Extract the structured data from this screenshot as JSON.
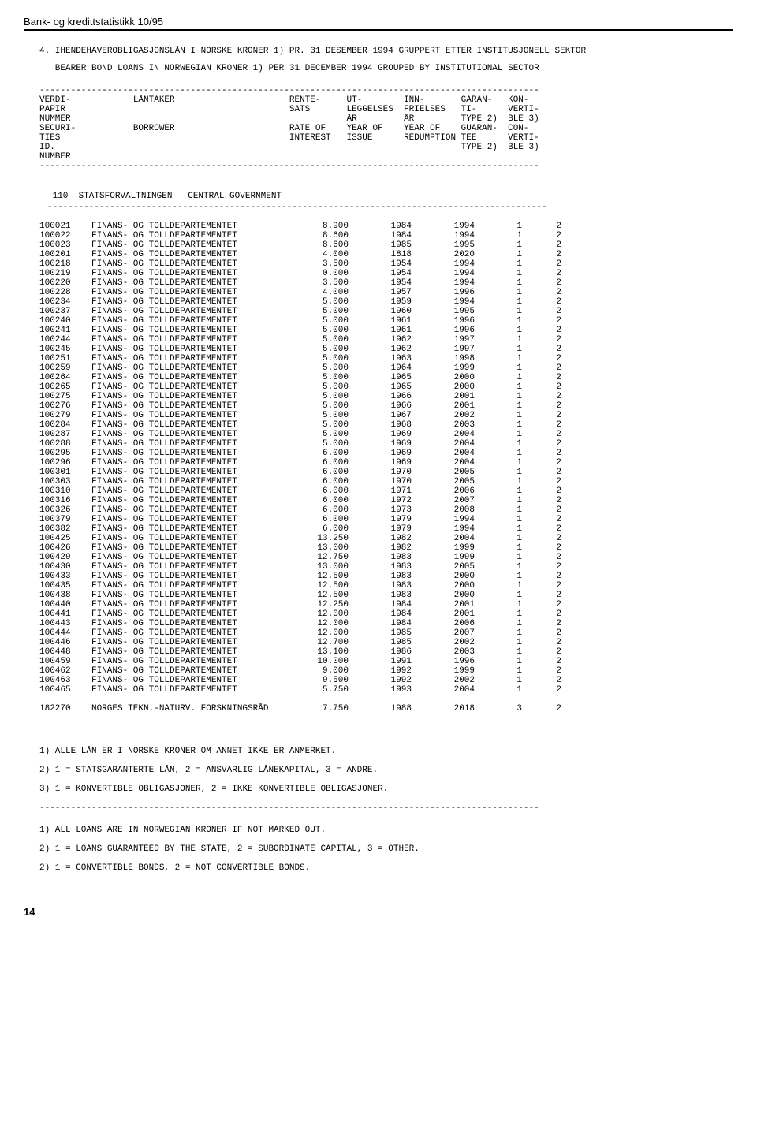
{
  "header": "Bank- og kredittstatistikk 10/95",
  "title_lines": [
    "4. IHENDEHAVEROBLIGASJONSLÅN I NORSKE KRONER 1) PR. 31 DESEMBER 1994 GRUPPERT ETTER INSTITUSJONELL SEKTOR",
    "   BEARER BOND LOANS IN NORWEGIAN KRONER 1) PER 31 DECEMBER 1994 GROUPED BY INSTITUTIONAL SECTOR"
  ],
  "col_header_lines": [
    "VERDI-            LÅNTAKER                      RENTE-     UT-        INN-       GARAN-   KON-",
    "PAPIR                                           SATS       LEGGELSES  FRIELSES   TI-      VERTI-",
    "NUMMER                                                     ÅR         ÅR         TYPE 2)  BLE 3)",
    "SECURI-           BORROWER                      RATE OF    YEAR OF    YEAR OF    GUARAN-  CON-",
    "TIES                                            INTEREST   ISSUE      REDUMPTION TEE      VERTI-",
    "ID.                                                                              TYPE 2)  BLE 3)",
    "NUMBER"
  ],
  "subheader": " 110  STATSFORVALTNINGEN   CENTRAL GOVERNMENT",
  "rows": [
    [
      "100021",
      "FINANS- OG TOLLDEPARTEMENTET",
      "8.900",
      "1984",
      "1994",
      "1",
      "2"
    ],
    [
      "100022",
      "FINANS- OG TOLLDEPARTEMENTET",
      "8.600",
      "1984",
      "1994",
      "1",
      "2"
    ],
    [
      "100023",
      "FINANS- OG TOLLDEPARTEMENTET",
      "8.600",
      "1985",
      "1995",
      "1",
      "2"
    ],
    [
      "100201",
      "FINANS- OG TOLLDEPARTEMENTET",
      "4.000",
      "1818",
      "2020",
      "1",
      "2"
    ],
    [
      "100218",
      "FINANS- OG TOLLDEPARTEMENTET",
      "3.500",
      "1954",
      "1994",
      "1",
      "2"
    ],
    [
      "100219",
      "FINANS- OG TOLLDEPARTEMENTET",
      "0.000",
      "1954",
      "1994",
      "1",
      "2"
    ],
    [
      "100220",
      "FINANS- OG TOLLDEPARTEMENTET",
      "3.500",
      "1954",
      "1994",
      "1",
      "2"
    ],
    [
      "100228",
      "FINANS- OG TOLLDEPARTEMENTET",
      "4.000",
      "1957",
      "1996",
      "1",
      "2"
    ],
    [
      "100234",
      "FINANS- OG TOLLDEPARTEMENTET",
      "5.000",
      "1959",
      "1994",
      "1",
      "2"
    ],
    [
      "100237",
      "FINANS- OG TOLLDEPARTEMENTET",
      "5.000",
      "1960",
      "1995",
      "1",
      "2"
    ],
    [
      "100240",
      "FINANS- OG TOLLDEPARTEMENTET",
      "5.000",
      "1961",
      "1996",
      "1",
      "2"
    ],
    [
      "100241",
      "FINANS- OG TOLLDEPARTEMENTET",
      "5.000",
      "1961",
      "1996",
      "1",
      "2"
    ],
    [
      "100244",
      "FINANS- OG TOLLDEPARTEMENTET",
      "5.000",
      "1962",
      "1997",
      "1",
      "2"
    ],
    [
      "100245",
      "FINANS- OG TOLLDEPARTEMENTET",
      "5.000",
      "1962",
      "1997",
      "1",
      "2"
    ],
    [
      "100251",
      "FINANS- OG TOLLDEPARTEMENTET",
      "5.000",
      "1963",
      "1998",
      "1",
      "2"
    ],
    [
      "100259",
      "FINANS- OG TOLLDEPARTEMENTET",
      "5.000",
      "1964",
      "1999",
      "1",
      "2"
    ],
    [
      "100264",
      "FINANS- OG TOLLDEPARTEMENTET",
      "5.000",
      "1965",
      "2000",
      "1",
      "2"
    ],
    [
      "100265",
      "FINANS- OG TOLLDEPARTEMENTET",
      "5.000",
      "1965",
      "2000",
      "1",
      "2"
    ],
    [
      "100275",
      "FINANS- OG TOLLDEPARTEMENTET",
      "5.000",
      "1966",
      "2001",
      "1",
      "2"
    ],
    [
      "100276",
      "FINANS- OG TOLLDEPARTEMENTET",
      "5.000",
      "1966",
      "2001",
      "1",
      "2"
    ],
    [
      "100279",
      "FINANS- OG TOLLDEPARTEMENTET",
      "5.000",
      "1967",
      "2002",
      "1",
      "2"
    ],
    [
      "100284",
      "FINANS- OG TOLLDEPARTEMENTET",
      "5.000",
      "1968",
      "2003",
      "1",
      "2"
    ],
    [
      "100287",
      "FINANS- OG TOLLDEPARTEMENTET",
      "5.000",
      "1969",
      "2004",
      "1",
      "2"
    ],
    [
      "100288",
      "FINANS- OG TOLLDEPARTEMENTET",
      "5.000",
      "1969",
      "2004",
      "1",
      "2"
    ],
    [
      "100295",
      "FINANS- OG TOLLDEPARTEMENTET",
      "6.000",
      "1969",
      "2004",
      "1",
      "2"
    ],
    [
      "100296",
      "FINANS- OG TOLLDEPARTEMENTET",
      "6.000",
      "1969",
      "2004",
      "1",
      "2"
    ],
    [
      "100301",
      "FINANS- OG TOLLDEPARTEMENTET",
      "6.000",
      "1970",
      "2005",
      "1",
      "2"
    ],
    [
      "100303",
      "FINANS- OG TOLLDEPARTEMENTET",
      "6.000",
      "1970",
      "2005",
      "1",
      "2"
    ],
    [
      "100310",
      "FINANS- OG TOLLDEPARTEMENTET",
      "6.000",
      "1971",
      "2006",
      "1",
      "2"
    ],
    [
      "100316",
      "FINANS- OG TOLLDEPARTEMENTET",
      "6.000",
      "1972",
      "2007",
      "1",
      "2"
    ],
    [
      "100326",
      "FINANS- OG TOLLDEPARTEMENTET",
      "6.000",
      "1973",
      "2008",
      "1",
      "2"
    ],
    [
      "100379",
      "FINANS- OG TOLLDEPARTEMENTET",
      "6.000",
      "1979",
      "1994",
      "1",
      "2"
    ],
    [
      "100382",
      "FINANS- OG TOLLDEPARTEMENTET",
      "6.000",
      "1979",
      "1994",
      "1",
      "2"
    ],
    [
      "100425",
      "FINANS- OG TOLLDEPARTEMENTET",
      "13.250",
      "1982",
      "2004",
      "1",
      "2"
    ],
    [
      "100426",
      "FINANS- OG TOLLDEPARTEMENTET",
      "13.000",
      "1982",
      "1999",
      "1",
      "2"
    ],
    [
      "100429",
      "FINANS- OG TOLLDEPARTEMENTET",
      "12.750",
      "1983",
      "1999",
      "1",
      "2"
    ],
    [
      "100430",
      "FINANS- OG TOLLDEPARTEMENTET",
      "13.000",
      "1983",
      "2005",
      "1",
      "2"
    ],
    [
      "100433",
      "FINANS- OG TOLLDEPARTEMENTET",
      "12.500",
      "1983",
      "2000",
      "1",
      "2"
    ],
    [
      "100435",
      "FINANS- OG TOLLDEPARTEMENTET",
      "12.500",
      "1983",
      "2000",
      "1",
      "2"
    ],
    [
      "100438",
      "FINANS- OG TOLLDEPARTEMENTET",
      "12.500",
      "1983",
      "2000",
      "1",
      "2"
    ],
    [
      "100440",
      "FINANS- OG TOLLDEPARTEMENTET",
      "12.250",
      "1984",
      "2001",
      "1",
      "2"
    ],
    [
      "100441",
      "FINANS- OG TOLLDEPARTEMENTET",
      "12.000",
      "1984",
      "2001",
      "1",
      "2"
    ],
    [
      "100443",
      "FINANS- OG TOLLDEPARTEMENTET",
      "12.000",
      "1984",
      "2006",
      "1",
      "2"
    ],
    [
      "100444",
      "FINANS- OG TOLLDEPARTEMENTET",
      "12.000",
      "1985",
      "2007",
      "1",
      "2"
    ],
    [
      "100446",
      "FINANS- OG TOLLDEPARTEMENTET",
      "12.700",
      "1985",
      "2002",
      "1",
      "2"
    ],
    [
      "100448",
      "FINANS- OG TOLLDEPARTEMENTET",
      "13.100",
      "1986",
      "2003",
      "1",
      "2"
    ],
    [
      "100459",
      "FINANS- OG TOLLDEPARTEMENTET",
      "10.000",
      "1991",
      "1996",
      "1",
      "2"
    ],
    [
      "100462",
      "FINANS- OG TOLLDEPARTEMENTET",
      "9.000",
      "1992",
      "1999",
      "1",
      "2"
    ],
    [
      "100463",
      "FINANS- OG TOLLDEPARTEMENTET",
      "9.500",
      "1992",
      "2002",
      "1",
      "2"
    ],
    [
      "100465",
      "FINANS- OG TOLLDEPARTEMENTET",
      "5.750",
      "1993",
      "2004",
      "1",
      "2"
    ]
  ],
  "last_row": [
    "182270",
    "NORGES TEKN.-NATURV. FORSKNINGSRÅD",
    "7.750",
    "1988",
    "2018",
    "3",
    "2"
  ],
  "footnotes_no": [
    "1) ALLE LÅN ER I NORSKE KRONER OM ANNET IKKE ER ANMERKET.",
    "2) 1 = STATSGARANTERTE LÅN, 2 = ANSVARLIG LÅNEKAPITAL, 3 = ANDRE.",
    "3) 1 = KONVERTIBLE OBLIGASJONER, 2 = IKKE KONVERTIBLE OBLIGASJONER."
  ],
  "footnotes_en": [
    "1) ALL LOANS ARE IN NORWEGIAN KRONER IF NOT MARKED OUT.",
    "2) 1 = LOANS GUARANTEED BY THE STATE, 2 = SUBORDINATE CAPITAL, 3 = OTHER.",
    "2) 1 = CONVERTIBLE BONDS, 2 = NOT CONVERTIBLE BONDS."
  ],
  "page_number": "14",
  "dash_line": "------------------------------------------------------------------------------------------------"
}
